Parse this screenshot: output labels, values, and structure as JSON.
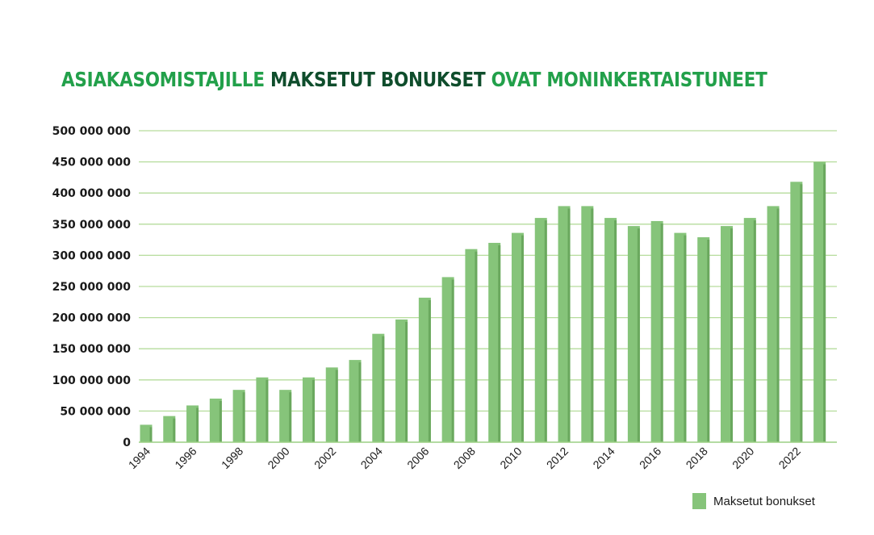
{
  "title": {
    "part1": "ASIAKASOMISTAJILLE ",
    "part2": "MAKSETUT BONUKSET",
    "part3": " OVAT MONINKERTAISTUNEET"
  },
  "colors": {
    "title_light": "#22a04a",
    "title_dark": "#0f4d2c",
    "bar": "#86c47a",
    "bar_edge": "#6aa85e",
    "grid": "#b6dc9c",
    "axis": "#9ccf83"
  },
  "chart_data": {
    "type": "bar",
    "title": "ASIAKASOMISTAJILLE MAKSETUT BONUKSET OVAT MONINKERTAISTUNEET",
    "xlabel": "",
    "ylabel": "",
    "ylim": [
      0,
      500000000
    ],
    "yticks": [
      0,
      50000000,
      100000000,
      150000000,
      200000000,
      250000000,
      300000000,
      350000000,
      400000000,
      450000000,
      500000000
    ],
    "ytick_labels": [
      "0",
      "50 000 000",
      "100 000 000",
      "150 000 000",
      "200 000 000",
      "250 000 000",
      "300 000 000",
      "350 000 000",
      "400 000 000",
      "450 000 000",
      "500 000 000"
    ],
    "categories": [
      "1994",
      "1995",
      "1996",
      "1997",
      "1998",
      "1999",
      "2000",
      "2001",
      "2002",
      "2003",
      "2004",
      "2005",
      "2006",
      "2007",
      "2008",
      "2009",
      "2010",
      "2011",
      "2012",
      "2013",
      "2014",
      "2015",
      "2016",
      "2017",
      "2018",
      "2019",
      "2020",
      "2021",
      "2022",
      "2023"
    ],
    "xtick_labels": [
      "1994",
      "1996",
      "1998",
      "2000",
      "2002",
      "2004",
      "2006",
      "2008",
      "2010",
      "2012",
      "2014",
      "2016",
      "2018",
      "2020",
      "2022"
    ],
    "grid": true,
    "legend_position": "bottom-right",
    "series": [
      {
        "name": "Maksetut bonukset",
        "values": [
          28000000,
          42000000,
          59000000,
          70000000,
          84000000,
          104000000,
          84000000,
          104000000,
          120000000,
          132000000,
          174000000,
          197000000,
          232000000,
          265000000,
          310000000,
          320000000,
          336000000,
          360000000,
          379000000,
          379000000,
          360000000,
          347000000,
          355000000,
          336000000,
          329000000,
          347000000,
          360000000,
          379000000,
          418000000,
          450000000
        ]
      }
    ]
  }
}
